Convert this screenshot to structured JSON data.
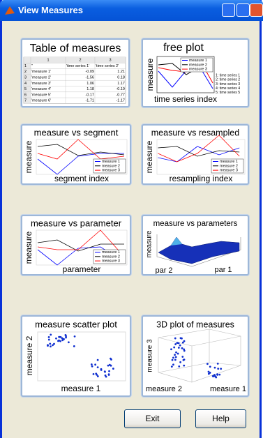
{
  "window": {
    "title": "View Measures"
  },
  "table_panel": {
    "title": "Table of measures",
    "columns": [
      "1",
      "2",
      "3"
    ],
    "rows": [
      [
        "1",
        "''",
        "'time series 1'",
        "'time series 2'"
      ],
      [
        "2",
        "'measure 1'",
        "-0.09",
        "1.21"
      ],
      [
        "3",
        "'measure 2'",
        "-1.56",
        "0.18"
      ],
      [
        "4",
        "'measure 3'",
        "1.06",
        "1.17"
      ],
      [
        "5",
        "'measure 4'",
        "1.18",
        "-0.19"
      ],
      [
        "6",
        "'measure 5'",
        "-0.17",
        "-0.77"
      ],
      [
        "7",
        "'measure 6'",
        "-1.71",
        "-1.17"
      ]
    ]
  },
  "panels": [
    {
      "title": "free plot",
      "xlabel": "time series index",
      "ylabel": "measure",
      "legend": [
        "measure 1",
        "measure 2",
        "measure 3"
      ],
      "notes": [
        "1: time series 1",
        "2: time series 2",
        "3: time series 3",
        "4: time series 4",
        "5: time series 5"
      ]
    },
    {
      "title": "measure vs segment",
      "xlabel": "segment index",
      "ylabel": "measure",
      "legend": [
        "measure 1",
        "measure 2",
        "measure 3"
      ]
    },
    {
      "title": "measure vs resampled",
      "xlabel": "resampling index",
      "ylabel": "measure",
      "legend": [
        "measure 1",
        "measure 2",
        "measure 3"
      ]
    },
    {
      "title": "measure vs parameter",
      "xlabel": "parameter",
      "ylabel": "measure",
      "legend": [
        "measure 1",
        "measure 2",
        "measure 3"
      ]
    },
    {
      "title": "measure vs parameters",
      "xlabel": "par 1",
      "ylabel": "par 2",
      "zlabel": "measure"
    },
    {
      "title": "measure scatter plot",
      "xlabel": "measure 1",
      "ylabel": "measure 2"
    },
    {
      "title": "3D plot of measures",
      "xlabel": "measure 1",
      "ylabel": "measure 2",
      "zlabel": "measure 3"
    }
  ],
  "buttons": [
    "Exit",
    "Help"
  ]
}
